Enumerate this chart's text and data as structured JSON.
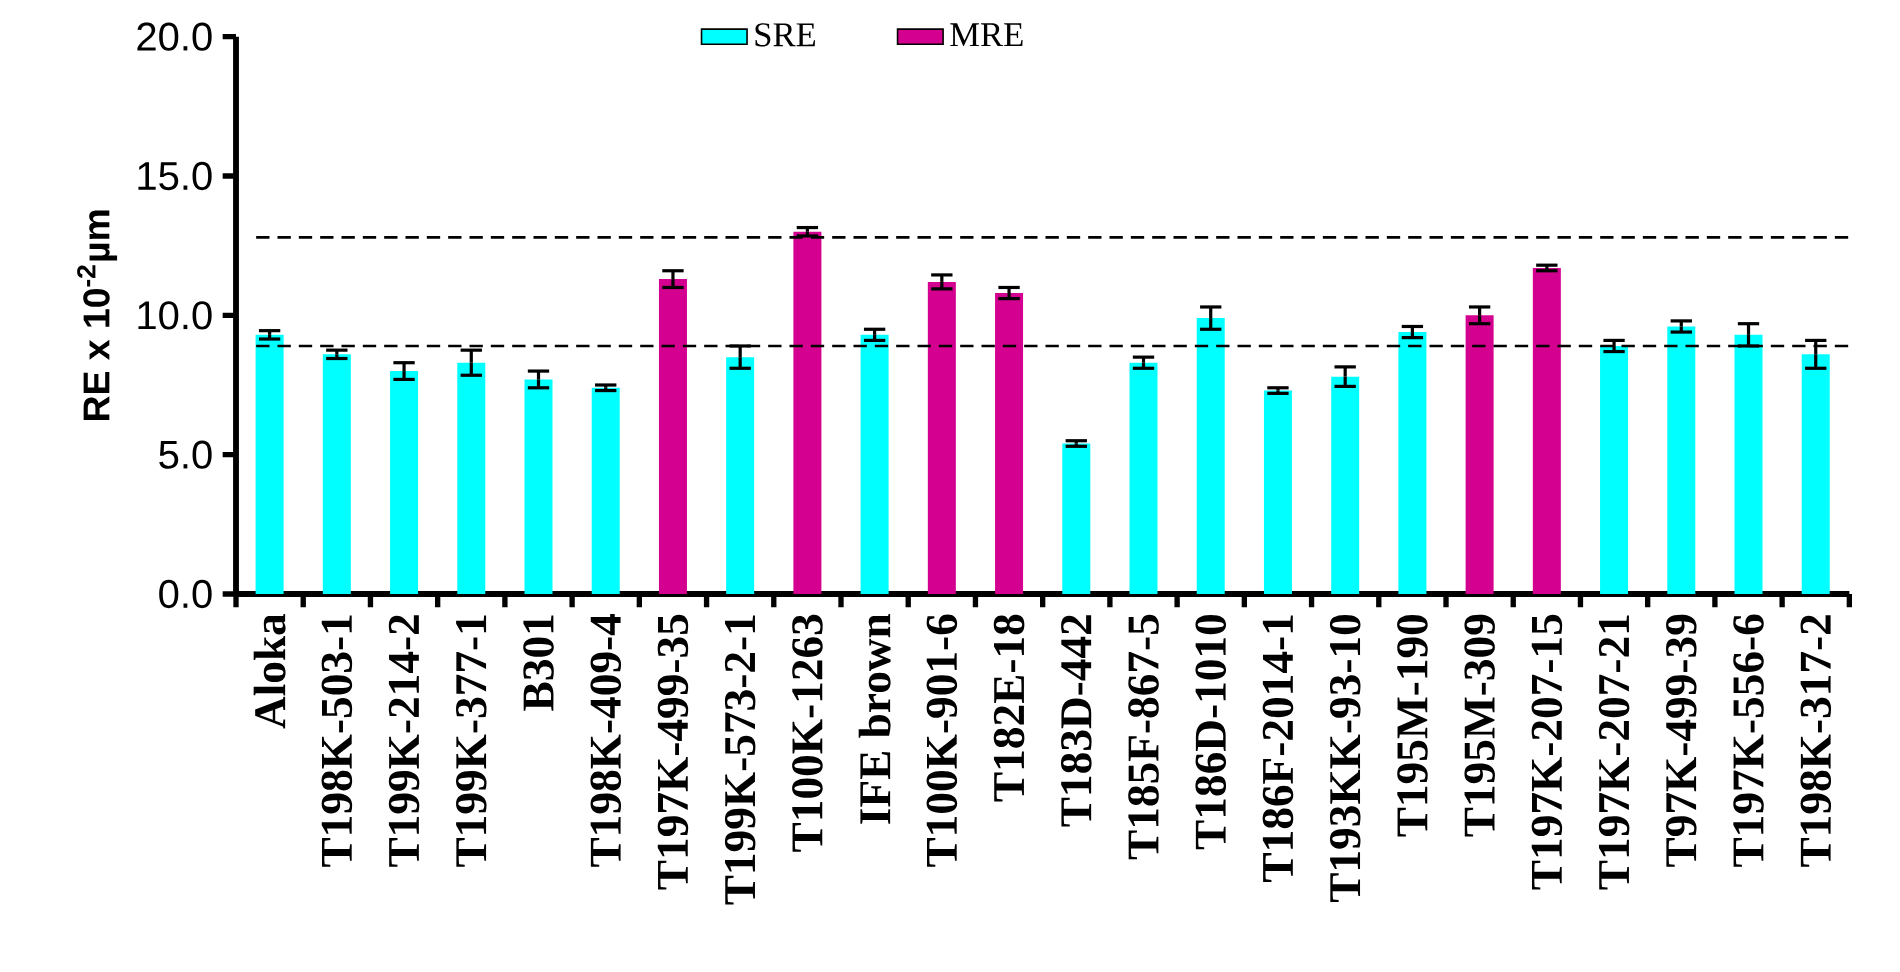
{
  "chart_data": {
    "type": "bar",
    "ylabel": "RE x 10$^{-2}$µm",
    "categories": [
      "Aloka",
      "T198K-503-1",
      "T199K-214-2",
      "T199K-377-1",
      "B301",
      "T198K-409-4",
      "T197K-499-35",
      "T199K-573-2-1",
      "T100K-1263",
      "IFE brown",
      "T100K-901-6",
      "T182E-18",
      "T183D-442",
      "T185F-867-5",
      "T186D-1010",
      "T186F-2014-1",
      "T193KK-93-10",
      "T195M-190",
      "T195M-309",
      "T197K-207-15",
      "T197K-207-21",
      "T97K-499-39",
      "T197K-556-6",
      "T198K-317-2"
    ],
    "series": [
      {
        "name": "SRE",
        "color": "#00ffff",
        "values": [
          9.3,
          8.6,
          8.0,
          8.3,
          7.7,
          7.4,
          null,
          8.5,
          null,
          9.3,
          null,
          null,
          5.4,
          8.3,
          9.9,
          7.3,
          7.8,
          9.4,
          null,
          null,
          8.9,
          9.6,
          9.3,
          8.6
        ],
        "errors": [
          0.15,
          0.15,
          0.3,
          0.45,
          0.3,
          0.1,
          null,
          0.4,
          null,
          0.2,
          null,
          null,
          0.1,
          0.2,
          0.4,
          0.1,
          0.35,
          0.2,
          null,
          null,
          0.2,
          0.2,
          0.4,
          0.5
        ]
      },
      {
        "name": "MRE",
        "color": "#d4008f",
        "values": [
          null,
          null,
          null,
          null,
          null,
          null,
          11.3,
          null,
          13.0,
          null,
          11.2,
          10.8,
          null,
          null,
          null,
          null,
          null,
          null,
          10.0,
          11.7,
          null,
          null,
          null,
          null
        ],
        "errors": [
          null,
          null,
          null,
          null,
          null,
          null,
          0.3,
          null,
          0.15,
          null,
          0.25,
          0.2,
          null,
          null,
          null,
          null,
          null,
          null,
          0.3,
          0.1,
          null,
          null,
          null,
          null
        ]
      }
    ],
    "ylim": [
      0,
      20
    ],
    "yticks": [
      {
        "value": 0,
        "label": "0.0"
      },
      {
        "value": 5,
        "label": "5.0"
      },
      {
        "value": 10,
        "label": "10.0"
      },
      {
        "value": 15,
        "label": "15.0"
      },
      {
        "value": 20,
        "label": "20.0"
      }
    ],
    "legend": "top",
    "ref_lines": [
      {
        "axis": "y",
        "value": 12.8,
        "line_style": "dashed"
      },
      {
        "axis": "y",
        "value": 8.9,
        "line_style": "dashed"
      }
    ]
  }
}
